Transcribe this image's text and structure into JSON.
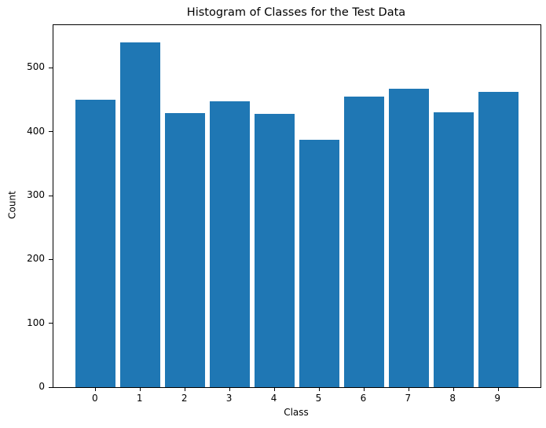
{
  "chart_data": {
    "type": "bar",
    "title": "Histogram of Classes for the Test Data",
    "xlabel": "Class",
    "ylabel": "Count",
    "categories": [
      "0",
      "1",
      "2",
      "3",
      "4",
      "5",
      "6",
      "7",
      "8",
      "9"
    ],
    "values": [
      450,
      540,
      429,
      448,
      428,
      388,
      455,
      468,
      430,
      463
    ],
    "yticks": [
      0,
      100,
      200,
      300,
      400,
      500
    ],
    "ylim": [
      0,
      567
    ],
    "xlim": [
      -0.945,
      9.945
    ],
    "bar_width": 0.9,
    "bar_color": "#1f77b4",
    "axis_color": "#000000",
    "background_color": "#ffffff",
    "grid": false,
    "legend": null,
    "legend_position": "none"
  }
}
